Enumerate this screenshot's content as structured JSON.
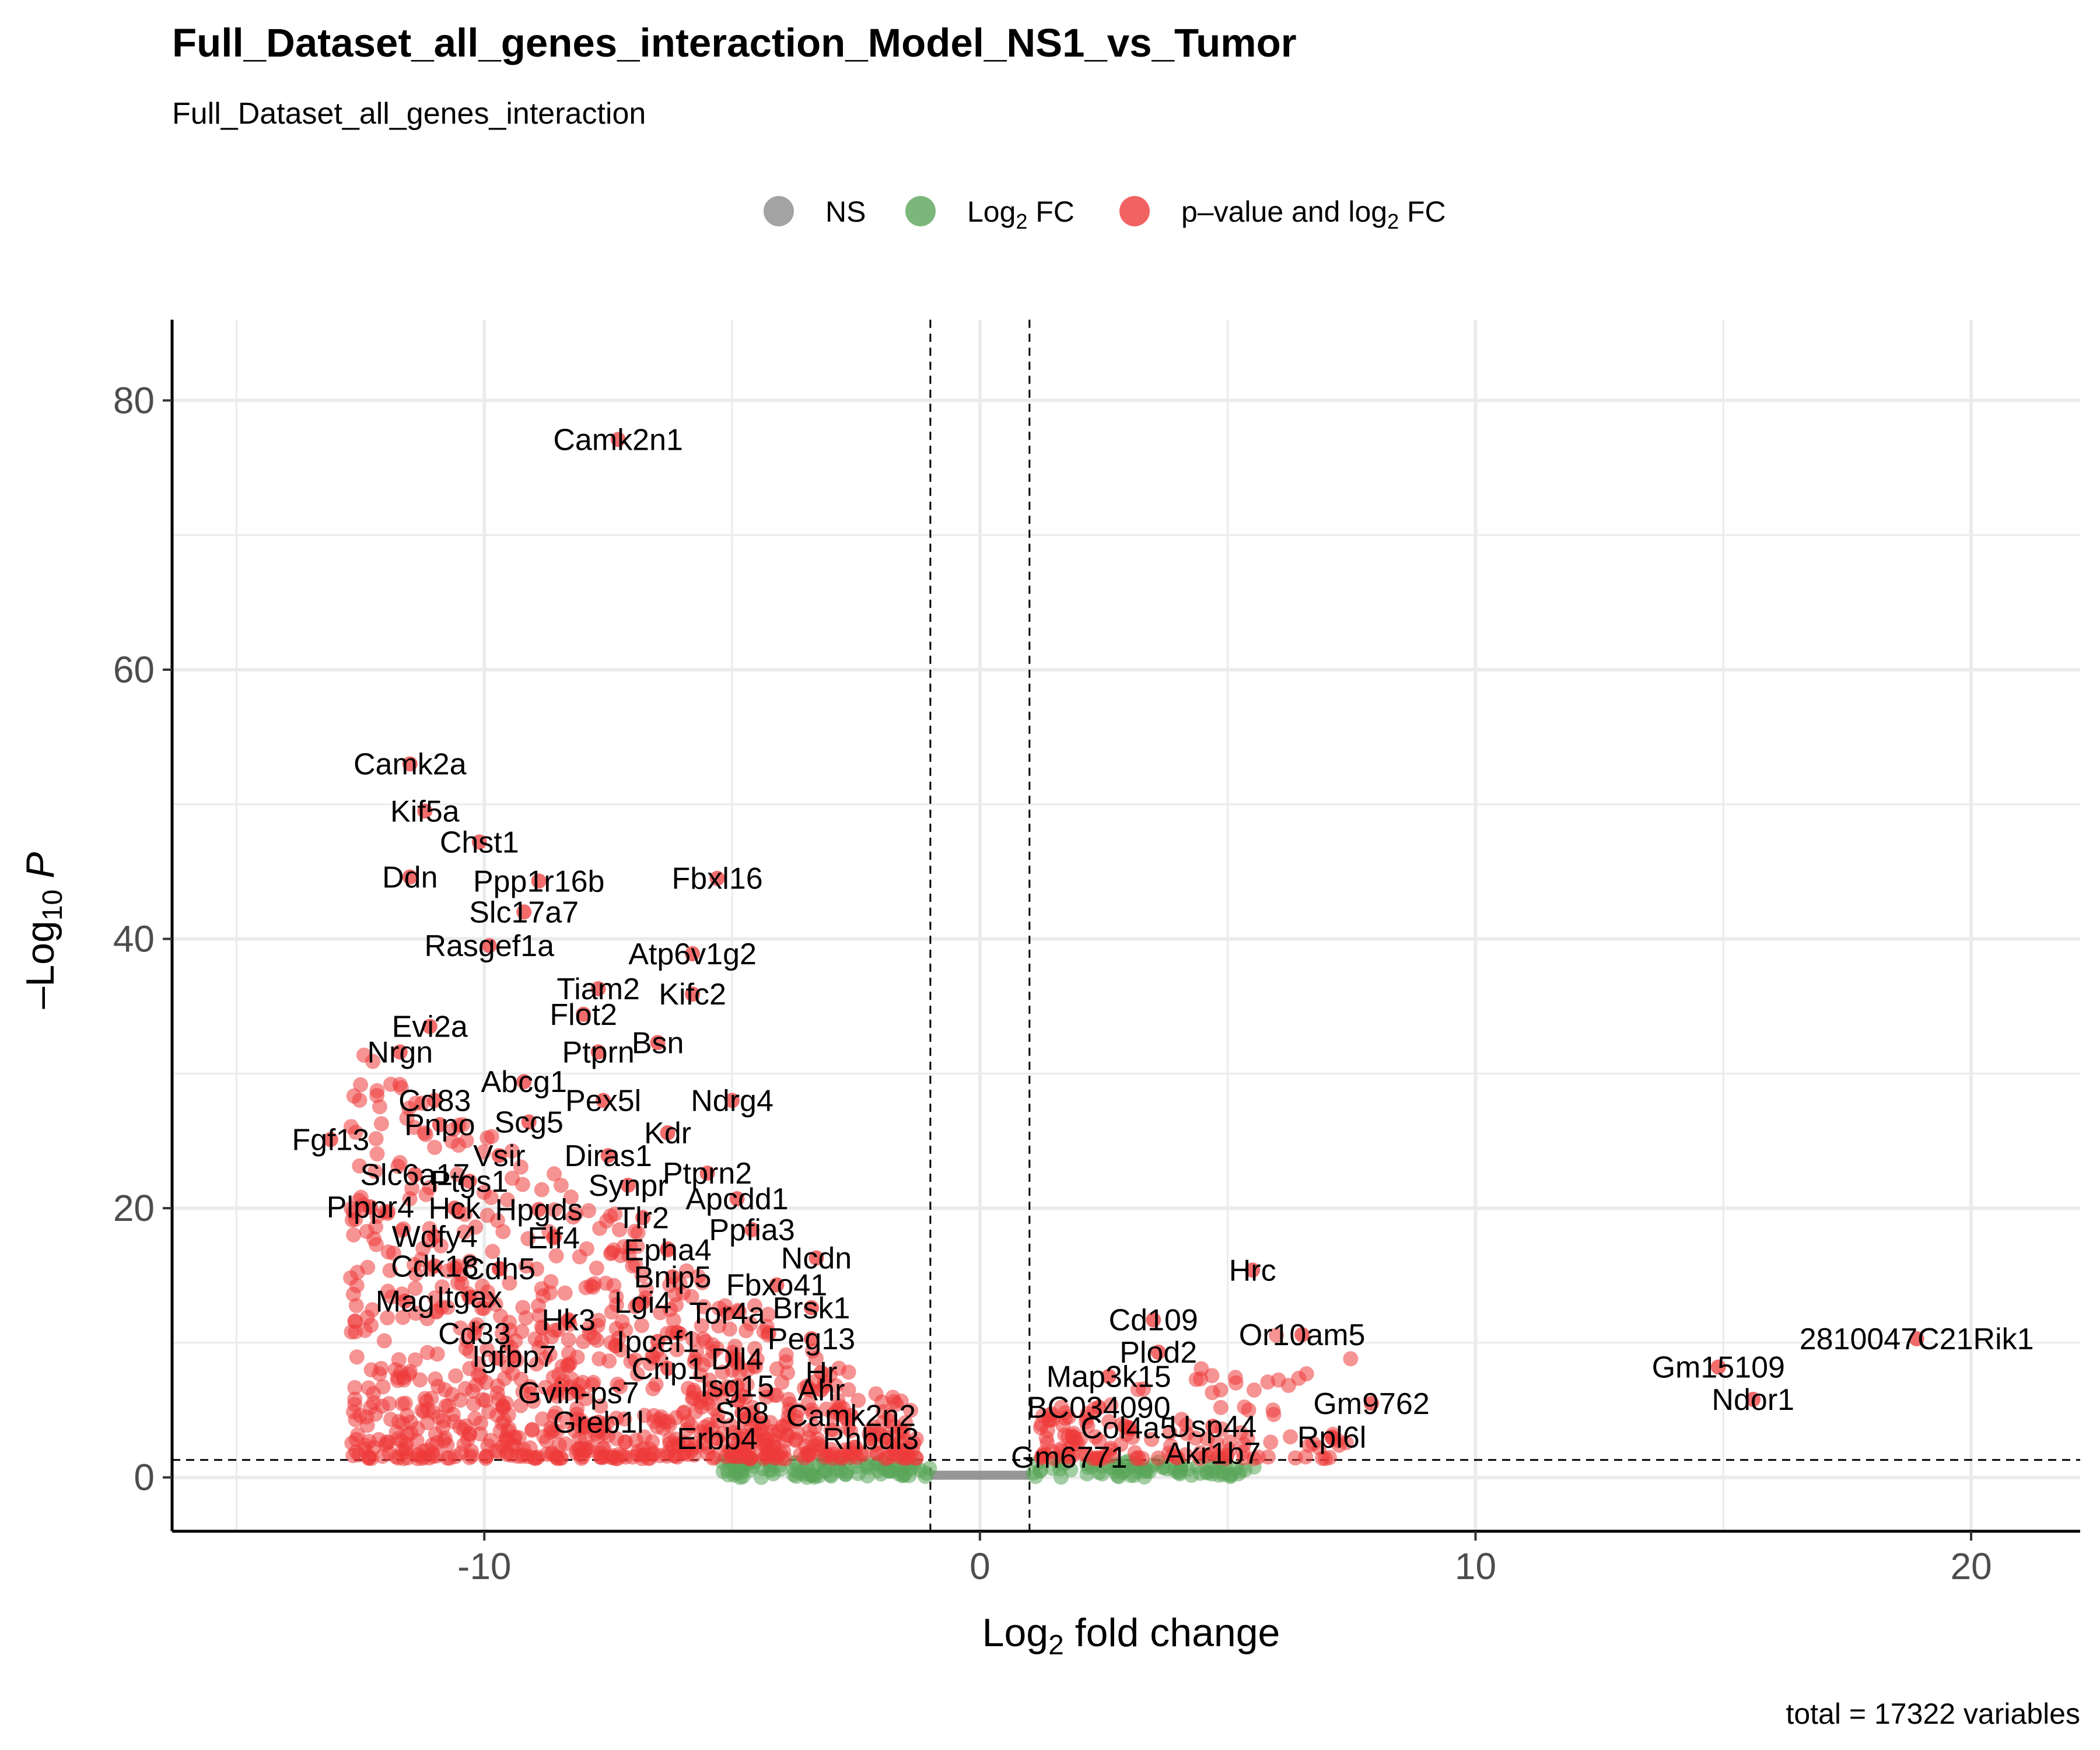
{
  "chart_data": {
    "type": "scatter",
    "title": "Full_Dataset_all_genes_interaction_Model_NS1_vs_Tumor",
    "subtitle": "Full_Dataset_all_genes_interaction",
    "xlabel": "Log2 fold change",
    "ylabel": "-Log10 P",
    "xlim": [
      -16.3,
      22.2
    ],
    "ylim": [
      -4,
      86
    ],
    "x_ticks": [
      -10,
      0,
      10,
      20
    ],
    "x_tick_labels": [
      "-10",
      "0",
      "10",
      "20"
    ],
    "y_ticks": [
      0,
      20,
      40,
      60,
      80
    ],
    "y_tick_labels": [
      "0",
      "20",
      "40",
      "60",
      "80"
    ],
    "grid": true,
    "cutoffs": {
      "log2fc": [
        -1,
        1
      ],
      "neg_log10_p": 1.3
    },
    "caption": "total = 17322 variables",
    "legend": {
      "position": "top",
      "items": [
        {
          "key": "ns",
          "label": "NS",
          "color": "#8c8c8c"
        },
        {
          "key": "fc",
          "label": "Log",
          "sub": "2",
          "tail": " FC",
          "color": "#5aa55a"
        },
        {
          "key": "both",
          "label": "p–value and log",
          "sub": "2",
          "tail": " FC",
          "color": "#ee3b3b"
        }
      ]
    },
    "labeled_points": [
      {
        "name": "Camk2n1",
        "x": -7.3,
        "y": 77.1
      },
      {
        "name": "Camk2a",
        "x": -11.5,
        "y": 53.0
      },
      {
        "name": "Kif5a",
        "x": -11.2,
        "y": 49.5
      },
      {
        "name": "Chst1",
        "x": -10.1,
        "y": 47.2
      },
      {
        "name": "Ddn",
        "x": -11.5,
        "y": 44.6
      },
      {
        "name": "Ppp1r16b",
        "x": -8.9,
        "y": 44.3
      },
      {
        "name": "Fbxl16",
        "x": -5.3,
        "y": 44.5
      },
      {
        "name": "Slc17a7",
        "x": -9.2,
        "y": 42.0
      },
      {
        "name": "Rasgef1a",
        "x": -9.9,
        "y": 39.5
      },
      {
        "name": "Atp6v1g2",
        "x": -5.8,
        "y": 38.9
      },
      {
        "name": "Tiam2",
        "x": -7.7,
        "y": 36.3
      },
      {
        "name": "Kifc2",
        "x": -5.8,
        "y": 35.9
      },
      {
        "name": "Flot2",
        "x": -8.0,
        "y": 34.4
      },
      {
        "name": "Evi2a",
        "x": -11.1,
        "y": 33.5
      },
      {
        "name": "Bsn",
        "x": -6.5,
        "y": 32.3
      },
      {
        "name": "Nrgn",
        "x": -11.7,
        "y": 31.6
      },
      {
        "name": "Ptprn",
        "x": -7.7,
        "y": 31.6
      },
      {
        "name": "Abcg1",
        "x": -9.2,
        "y": 29.4
      },
      {
        "name": "Pex5l",
        "x": -7.6,
        "y": 28.0
      },
      {
        "name": "Ndrg4",
        "x": -5.0,
        "y": 28.0
      },
      {
        "name": "Cd83",
        "x": -11.0,
        "y": 28.0
      },
      {
        "name": "Scg5",
        "x": -9.1,
        "y": 26.4
      },
      {
        "name": "Pnpo",
        "x": -10.9,
        "y": 26.2
      },
      {
        "name": "Kdr",
        "x": -6.3,
        "y": 25.6
      },
      {
        "name": "Fgf13",
        "x": -13.1,
        "y": 25.1
      },
      {
        "name": "Vsir",
        "x": -9.7,
        "y": 23.9
      },
      {
        "name": "Diras1",
        "x": -7.5,
        "y": 23.9
      },
      {
        "name": "Ptprn2",
        "x": -5.5,
        "y": 22.6
      },
      {
        "name": "Slc6a17",
        "x": -11.4,
        "y": 22.5
      },
      {
        "name": "Ptgs1",
        "x": -10.3,
        "y": 22.0
      },
      {
        "name": "Synpr",
        "x": -7.1,
        "y": 21.7
      },
      {
        "name": "Apcdd1",
        "x": -4.9,
        "y": 20.7
      },
      {
        "name": "Plppr4",
        "x": -12.3,
        "y": 20.1
      },
      {
        "name": "Hck",
        "x": -10.6,
        "y": 20.0
      },
      {
        "name": "Hpgds",
        "x": -8.9,
        "y": 19.9
      },
      {
        "name": "Tlr2",
        "x": -6.8,
        "y": 19.3
      },
      {
        "name": "Ppfia3",
        "x": -4.6,
        "y": 18.4
      },
      {
        "name": "Wdfy4",
        "x": -11.0,
        "y": 17.9
      },
      {
        "name": "Elf4",
        "x": -8.6,
        "y": 17.8
      },
      {
        "name": "Epha4",
        "x": -6.3,
        "y": 16.9
      },
      {
        "name": "Ncdn",
        "x": -3.3,
        "y": 16.3
      },
      {
        "name": "Cdk18",
        "x": -11.0,
        "y": 15.7
      },
      {
        "name": "Cdh5",
        "x": -9.7,
        "y": 15.5
      },
      {
        "name": "Bnip5",
        "x": -6.2,
        "y": 14.9
      },
      {
        "name": "Fbxo41",
        "x": -4.1,
        "y": 14.3
      },
      {
        "name": "Mag",
        "x": -11.6,
        "y": 13.1
      },
      {
        "name": "Itgax",
        "x": -10.3,
        "y": 13.4
      },
      {
        "name": "Lgi4",
        "x": -6.8,
        "y": 13.0
      },
      {
        "name": "Tor4a",
        "x": -5.1,
        "y": 12.2
      },
      {
        "name": "Brsk1",
        "x": -3.4,
        "y": 12.6
      },
      {
        "name": "Hk3",
        "x": -8.3,
        "y": 11.7
      },
      {
        "name": "Cd33",
        "x": -10.2,
        "y": 10.7
      },
      {
        "name": "Peg13",
        "x": -3.4,
        "y": 10.3
      },
      {
        "name": "Ipcef1",
        "x": -6.5,
        "y": 10.1
      },
      {
        "name": "Igfbp7",
        "x": -9.4,
        "y": 9.0
      },
      {
        "name": "Dll4",
        "x": -4.9,
        "y": 8.8
      },
      {
        "name": "Crip1",
        "x": -6.3,
        "y": 8.1
      },
      {
        "name": "Hr",
        "x": -3.2,
        "y": 7.8
      },
      {
        "name": "Isg15",
        "x": -4.9,
        "y": 6.8
      },
      {
        "name": "Ahr",
        "x": -3.2,
        "y": 6.5
      },
      {
        "name": "Gvin-ps7",
        "x": -8.1,
        "y": 6.3
      },
      {
        "name": "Sp8",
        "x": -4.8,
        "y": 4.8
      },
      {
        "name": "Camk2n2",
        "x": -2.6,
        "y": 4.6
      },
      {
        "name": "Greb1l",
        "x": -7.7,
        "y": 4.1
      },
      {
        "name": "Erbb4",
        "x": -5.3,
        "y": 2.9
      },
      {
        "name": "Rhbdl3",
        "x": -2.2,
        "y": 2.9
      },
      {
        "name": "Hrc",
        "x": 5.5,
        "y": 15.4
      },
      {
        "name": "Cd109",
        "x": 3.5,
        "y": 11.7
      },
      {
        "name": "Or10am5",
        "x": 6.5,
        "y": 10.6
      },
      {
        "name": "Plod2",
        "x": 3.6,
        "y": 9.3
      },
      {
        "name": "Map3k15",
        "x": 2.6,
        "y": 7.5
      },
      {
        "name": "Gm9762",
        "x": 7.9,
        "y": 5.5
      },
      {
        "name": "BC034090",
        "x": 2.4,
        "y": 5.2
      },
      {
        "name": "Usp44",
        "x": 4.7,
        "y": 3.8
      },
      {
        "name": "Col4a5",
        "x": 3.0,
        "y": 3.7
      },
      {
        "name": "Rpl6l",
        "x": 7.1,
        "y": 3.0
      },
      {
        "name": "Akr1b7",
        "x": 4.7,
        "y": 1.8
      },
      {
        "name": "Gm6771",
        "x": 1.8,
        "y": 1.5
      },
      {
        "name": "2810047C21Rik1",
        "x": 18.9,
        "y": 10.3
      },
      {
        "name": "Gm15109",
        "x": 14.9,
        "y": 8.2
      },
      {
        "name": "Ndor1",
        "x": 15.6,
        "y": 5.8
      }
    ]
  }
}
